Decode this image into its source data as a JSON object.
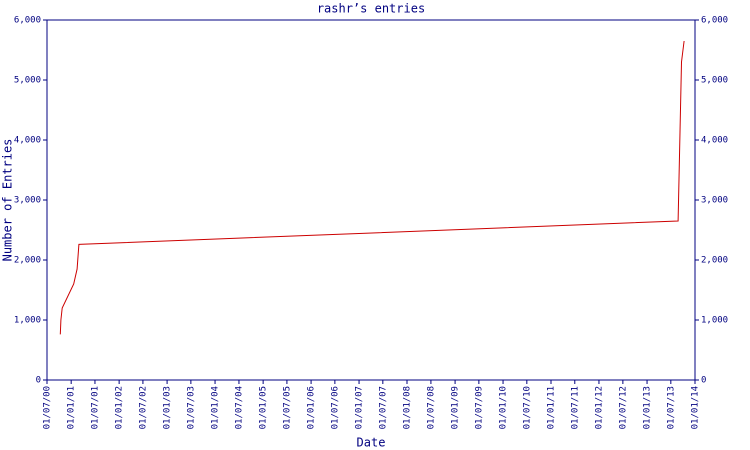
{
  "chart_data": {
    "type": "line",
    "title": "rashr’s entries",
    "x_label": "Date",
    "y_label": "Number of Entries",
    "x": [
      "2000-10-10",
      "2000-10-15",
      "2000-10-25",
      "2001-01-20",
      "2001-02-15",
      "2001-03-01",
      "2013-08-25",
      "2013-09-20",
      "2013-10-10"
    ],
    "series": [
      {
        "name": "entries",
        "color": "#cc0000",
        "values": [
          760,
          1000,
          1200,
          1600,
          1850,
          2260,
          2650,
          5300,
          5650
        ]
      }
    ],
    "xlim": [
      "2000-07-01",
      "2014-01-01"
    ],
    "xticks": [
      {
        "value": "2000-07-01",
        "label": "01/07/00"
      },
      {
        "value": "2001-01-01",
        "label": "01/01/01"
      },
      {
        "value": "2001-07-01",
        "label": "01/07/01"
      },
      {
        "value": "2002-01-01",
        "label": "01/01/02"
      },
      {
        "value": "2002-07-01",
        "label": "01/07/02"
      },
      {
        "value": "2003-01-01",
        "label": "01/01/03"
      },
      {
        "value": "2003-07-01",
        "label": "01/07/03"
      },
      {
        "value": "2004-01-01",
        "label": "01/01/04"
      },
      {
        "value": "2004-07-01",
        "label": "01/07/04"
      },
      {
        "value": "2005-01-01",
        "label": "01/01/05"
      },
      {
        "value": "2005-07-01",
        "label": "01/07/05"
      },
      {
        "value": "2006-01-01",
        "label": "01/01/06"
      },
      {
        "value": "2006-07-01",
        "label": "01/07/06"
      },
      {
        "value": "2007-01-01",
        "label": "01/01/07"
      },
      {
        "value": "2007-07-01",
        "label": "01/07/07"
      },
      {
        "value": "2008-01-01",
        "label": "01/01/08"
      },
      {
        "value": "2008-07-01",
        "label": "01/07/08"
      },
      {
        "value": "2009-01-01",
        "label": "01/01/09"
      },
      {
        "value": "2009-07-01",
        "label": "01/07/09"
      },
      {
        "value": "2010-01-01",
        "label": "01/01/10"
      },
      {
        "value": "2010-07-01",
        "label": "01/07/10"
      },
      {
        "value": "2011-01-01",
        "label": "01/01/11"
      },
      {
        "value": "2011-07-01",
        "label": "01/07/11"
      },
      {
        "value": "2012-01-01",
        "label": "01/01/12"
      },
      {
        "value": "2012-07-01",
        "label": "01/07/12"
      },
      {
        "value": "2013-01-01",
        "label": "01/01/13"
      },
      {
        "value": "2013-07-01",
        "label": "01/07/13"
      },
      {
        "value": "2014-01-01",
        "label": "01/01/14"
      }
    ],
    "ylim": [
      0,
      6000
    ],
    "yticks": [
      0,
      {
        "value": 1000,
        "label": "1,000"
      },
      {
        "value": 2000,
        "label": "2,000"
      },
      {
        "value": 3000,
        "label": "3,000"
      },
      {
        "value": 4000,
        "label": "4,000"
      },
      {
        "value": 5000,
        "label": "5,000"
      },
      {
        "value": 6000,
        "label": "6,000"
      }
    ],
    "y2lim": [
      0,
      6000
    ],
    "y2ticks": [
      0,
      {
        "value": 1000,
        "label": "1,000"
      },
      {
        "value": 2000,
        "label": "2,000"
      },
      {
        "value": 3000,
        "label": "3,000"
      },
      {
        "value": 4000,
        "label": "4,000"
      },
      {
        "value": 5000,
        "label": "5,000"
      },
      {
        "value": 6000,
        "label": "6,000"
      }
    ]
  }
}
